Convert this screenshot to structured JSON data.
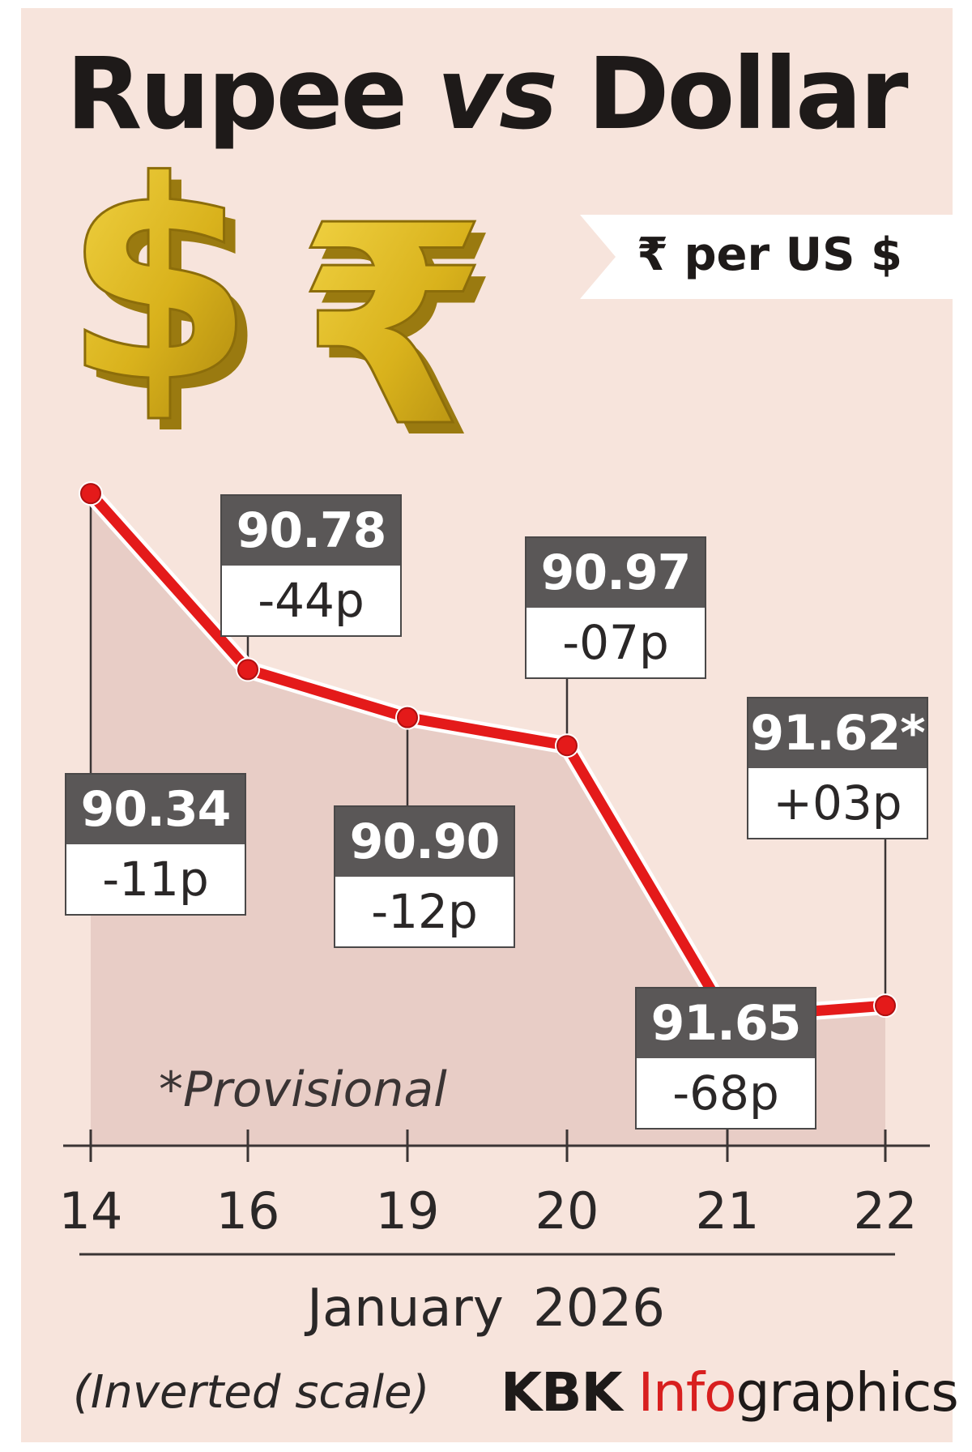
{
  "title": {
    "main1": "Rupee",
    "vs": "vs",
    "main2": "Dollar"
  },
  "unit": "₹ per US $",
  "chart_data": {
    "type": "line",
    "title": "Rupee vs Dollar",
    "ylabel": "₹ per US $",
    "xlabel": "January 2026",
    "inverted_y": true,
    "ylim": [
      90.2,
      91.8
    ],
    "categories": [
      "14",
      "16",
      "19",
      "20",
      "21",
      "22"
    ],
    "series": [
      {
        "values": [
          90.34,
          90.78,
          90.9,
          90.97,
          91.65,
          91.62
        ],
        "changes": [
          "-11p",
          "-44p",
          "-12p",
          "-07p",
          "-68p",
          "+03p"
        ],
        "value_labels": [
          "90.34",
          "90.78",
          "90.90",
          "90.97",
          "91.65",
          "91.62*"
        ],
        "color": "#e41a1a"
      }
    ],
    "annotations": [
      "*Provisional"
    ],
    "note": "(Inverted scale)"
  },
  "footer": {
    "credit_kbk": "KBK",
    "credit_info": "Info",
    "credit_rest": "graphics"
  }
}
